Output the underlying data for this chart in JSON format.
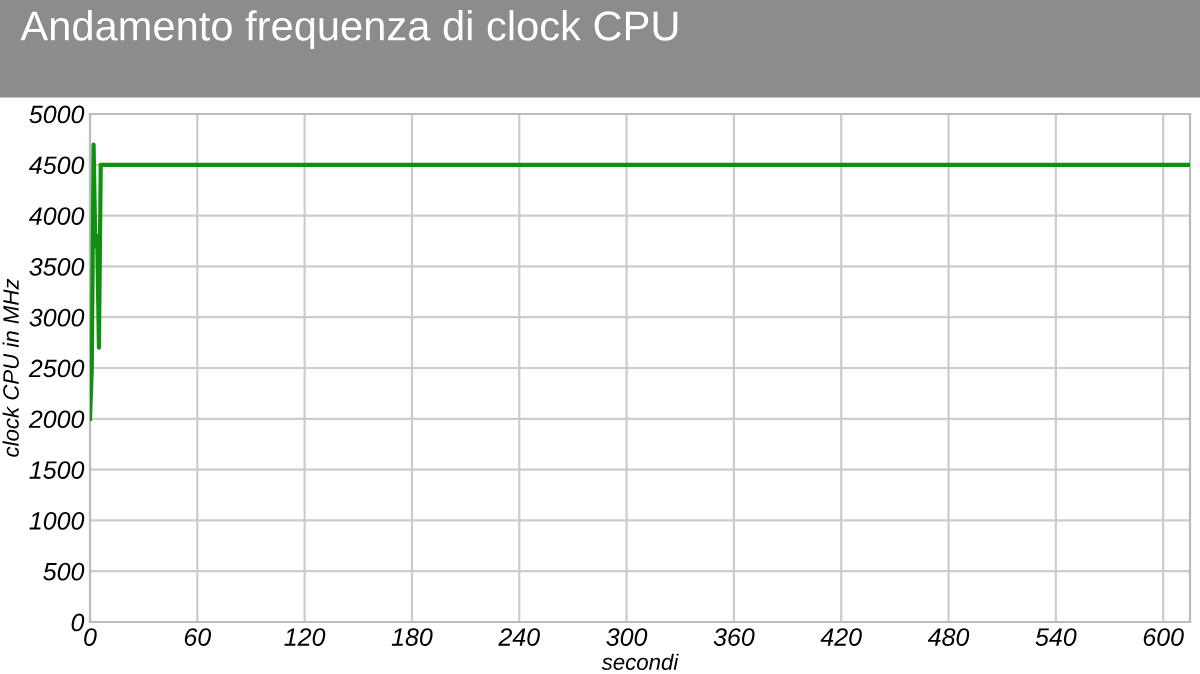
{
  "chart_data": {
    "type": "line",
    "title": "Andamento frequenza di clock CPU",
    "xlabel": "secondi",
    "ylabel": "clock CPU in MHz",
    "x": [
      0,
      1,
      2,
      3,
      4,
      5,
      6,
      615
    ],
    "series": [
      {
        "color": "#109010",
        "values": [
          2000,
          2500,
          4700,
          3700,
          3800,
          2700,
          4500,
          4500
        ]
      }
    ],
    "xlim": [
      0,
      615
    ],
    "ylim": [
      0,
      5000
    ],
    "xticks": [
      0,
      60,
      120,
      180,
      240,
      300,
      360,
      420,
      480,
      540,
      600
    ],
    "yticks": [
      0,
      500,
      1000,
      1500,
      2000,
      2500,
      3000,
      3500,
      4000,
      4500,
      5000
    ],
    "grid": true,
    "marker": "none",
    "line_style": "solid"
  }
}
